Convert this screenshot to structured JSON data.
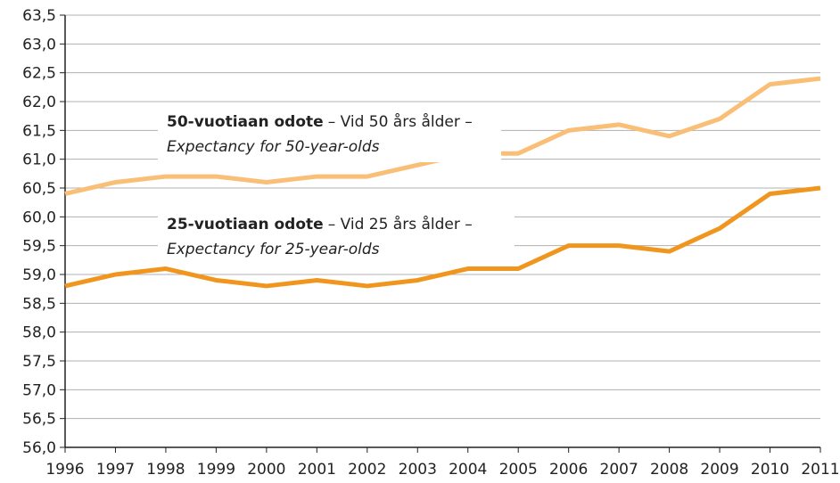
{
  "chart_data": {
    "type": "line",
    "x": [
      1996,
      1997,
      1998,
      1999,
      2000,
      2001,
      2002,
      2003,
      2004,
      2005,
      2006,
      2007,
      2008,
      2009,
      2010,
      2011
    ],
    "series": [
      {
        "color": "#f9bf76",
        "values": [
          60.4,
          60.6,
          60.7,
          60.7,
          60.6,
          60.7,
          60.7,
          60.9,
          61.1,
          61.1,
          61.5,
          61.6,
          61.4,
          61.7,
          62.3,
          62.4
        ]
      },
      {
        "color": "#f0961e",
        "values": [
          58.8,
          59.0,
          59.1,
          58.9,
          58.8,
          58.9,
          58.8,
          58.9,
          59.1,
          59.1,
          59.5,
          59.5,
          59.4,
          59.8,
          60.4,
          60.5
        ]
      }
    ],
    "annotations": [
      {
        "bold": "50-vuotiaan odote",
        "text": "– Vid 50 års ålder –",
        "italic": "Expectancy for 50-year-olds"
      },
      {
        "bold": "25-vuotiaan odote",
        "text": "– Vid 25 års ålder –",
        "italic": "Expectancy for 25-year-olds"
      }
    ],
    "xlim": [
      1996,
      2011
    ],
    "xticks": [
      1996,
      1997,
      1998,
      1999,
      2000,
      2001,
      2002,
      2003,
      2004,
      2005,
      2006,
      2007,
      2008,
      2009,
      2010,
      2011
    ],
    "ylim": [
      56,
      63.5
    ],
    "yticks": [
      {
        "value": 56,
        "label": "56,0"
      },
      {
        "value": 56.5,
        "label": "56,5"
      },
      {
        "value": 57,
        "label": "57,0"
      },
      {
        "value": 57.5,
        "label": "57,5"
      },
      {
        "value": 58,
        "label": "58,0"
      },
      {
        "value": 58.5,
        "label": "58,5"
      },
      {
        "value": 59,
        "label": "59,0"
      },
      {
        "value": 59.5,
        "label": "59,5"
      },
      {
        "value": 60,
        "label": "60,0"
      },
      {
        "value": 60.5,
        "label": "60,5"
      },
      {
        "value": 61,
        "label": "61,0"
      },
      {
        "value": 61.5,
        "label": "61,5"
      },
      {
        "value": 62,
        "label": "62,0"
      },
      {
        "value": 62.5,
        "label": "62,5"
      },
      {
        "value": 63,
        "label": "63,0"
      },
      {
        "value": 63.5,
        "label": "63,5"
      }
    ],
    "grid": true
  }
}
